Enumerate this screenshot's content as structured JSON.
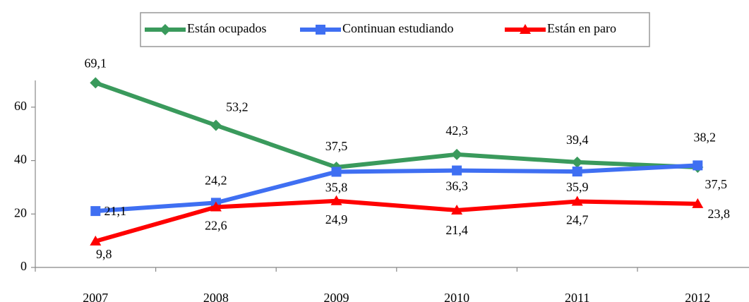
{
  "chart_data": {
    "type": "line",
    "categories": [
      "2007",
      "2008",
      "2009",
      "2010",
      "2011",
      "2012"
    ],
    "series": [
      {
        "name": "Están ocupados",
        "color": "#3a9a5c",
        "marker": "diamond",
        "values": [
          69.1,
          53.2,
          37.5,
          42.3,
          39.4,
          37.5
        ],
        "value_labels": [
          "69,1",
          "53,2",
          "37,5",
          "42,3",
          "39,4",
          "37,5"
        ]
      },
      {
        "name": "Continuan estudiando",
        "color": "#3f6ff2",
        "marker": "square",
        "values": [
          21.1,
          24.2,
          35.8,
          36.3,
          35.9,
          38.2
        ],
        "value_labels": [
          "21,1",
          "24,2",
          "35,8",
          "36,3",
          "35,9",
          "38,2"
        ]
      },
      {
        "name": "Están en paro",
        "color": "#ff0000",
        "marker": "triangle",
        "values": [
          9.8,
          22.6,
          24.9,
          21.4,
          24.7,
          23.8
        ],
        "value_labels": [
          "9,8",
          "22,6",
          "24,9",
          "21,4",
          "24,7",
          "23,8"
        ]
      }
    ],
    "ylim": [
      0,
      70
    ],
    "yticks": [
      0,
      20,
      40,
      60
    ],
    "legend": "top"
  }
}
